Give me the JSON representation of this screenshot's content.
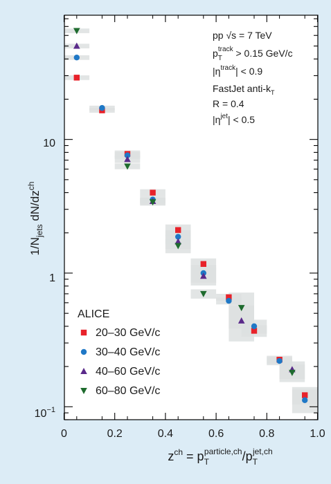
{
  "chart_data": {
    "type": "scatter",
    "experiment": "ALICE",
    "x_axis": {
      "scale": "linear",
      "range": [
        0,
        1.0
      ],
      "ticks": [
        0,
        0.2,
        0.4,
        0.6,
        0.8,
        1.0
      ],
      "tick_labels": [
        "0",
        "0.2",
        "0.4",
        "0.6",
        "0.8",
        "1.0"
      ],
      "label_base": "z",
      "label_base_sup": "ch",
      "label_eq": " = p",
      "label_num_sub": "T",
      "label_num_sup": "particle,ch",
      "label_slash": "/p",
      "label_den_sub": "T",
      "label_den_sup": "jet,ch"
    },
    "y_axis": {
      "scale": "log",
      "range": [
        0.08,
        85
      ],
      "tick_values": [
        0.1,
        1,
        10
      ],
      "label_main": "1/N",
      "label_sub": "jets",
      "label_mid": " dN/dz",
      "label_sup": "ch"
    },
    "tick_label_10": "10",
    "tick_label_1": "1",
    "tick_label_01_base": "10",
    "tick_label_01_exp": "−1",
    "annotations": {
      "line1": "pp √s = 7 TeV",
      "line2_p": "p",
      "line2_sub": "T",
      "line2_sup": "track",
      "line2_rest": " > 0.15 GeV/c",
      "line3_open": "|η",
      "line3_sup": "track",
      "line3_rest": "| < 0.9",
      "line4_main": "FastJet anti-k",
      "line4_sub": "T",
      "line5": "R = 0.4",
      "line6_open": "|η",
      "line6_sup": "jet",
      "line6_rest": "| < 0.5"
    },
    "legend": {
      "title": "ALICE",
      "position": "bottom-left"
    },
    "series": [
      {
        "name": "20–30 GeV/c",
        "marker": "square",
        "color": "#e8222a",
        "x": [
          0.05,
          0.15,
          0.25,
          0.35,
          0.45,
          0.55,
          0.65,
          0.75,
          0.85,
          0.95
        ],
        "y": [
          29,
          16.5,
          7.8,
          4.0,
          2.1,
          1.17,
          0.66,
          0.37,
          0.225,
          0.122
        ],
        "sys_y_halfwidth_frac": [
          0.04,
          0.04,
          0.06,
          0.06,
          0.1,
          0.1,
          0.06,
          0.1,
          0.07,
          0.15
        ]
      },
      {
        "name": "30–40 GeV/c",
        "marker": "circle",
        "color": "#1f78c6",
        "x": [
          0.05,
          0.15,
          0.25,
          0.35,
          0.45,
          0.55,
          0.65,
          0.75,
          0.85,
          0.95
        ],
        "y": [
          41,
          17.2,
          7.6,
          3.55,
          1.87,
          1.0,
          0.62,
          0.4,
          0.22,
          0.112
        ],
        "sys_y_halfwidth_frac": [
          0.04,
          0.04,
          0.06,
          0.06,
          0.12,
          0.15,
          0.06,
          0.12,
          0.07,
          0.2
        ]
      },
      {
        "name": "40–60 GeV/c",
        "marker": "triangle-up",
        "color": "#5a2a8a",
        "x": [
          0.05,
          0.25,
          0.35,
          0.45,
          0.55,
          0.7,
          0.9
        ],
        "y": [
          50,
          7.1,
          3.45,
          1.72,
          0.95,
          0.44,
          0.19
        ],
        "sys_y_halfwidth_frac": [
          0.04,
          0.06,
          0.06,
          0.12,
          0.15,
          0.3,
          0.15
        ]
      },
      {
        "name": "60–80 GeV/c",
        "marker": "triangle-down",
        "color": "#1e6b2e",
        "x": [
          0.05,
          0.25,
          0.35,
          0.45,
          0.55,
          0.7,
          0.9
        ],
        "y": [
          65,
          6.3,
          3.4,
          1.6,
          0.7,
          0.55,
          0.18
        ],
        "sys_y_halfwidth_frac": [
          0.04,
          0.05,
          0.06,
          0.12,
          0.08,
          0.3,
          0.15
        ]
      }
    ],
    "grid": false
  }
}
